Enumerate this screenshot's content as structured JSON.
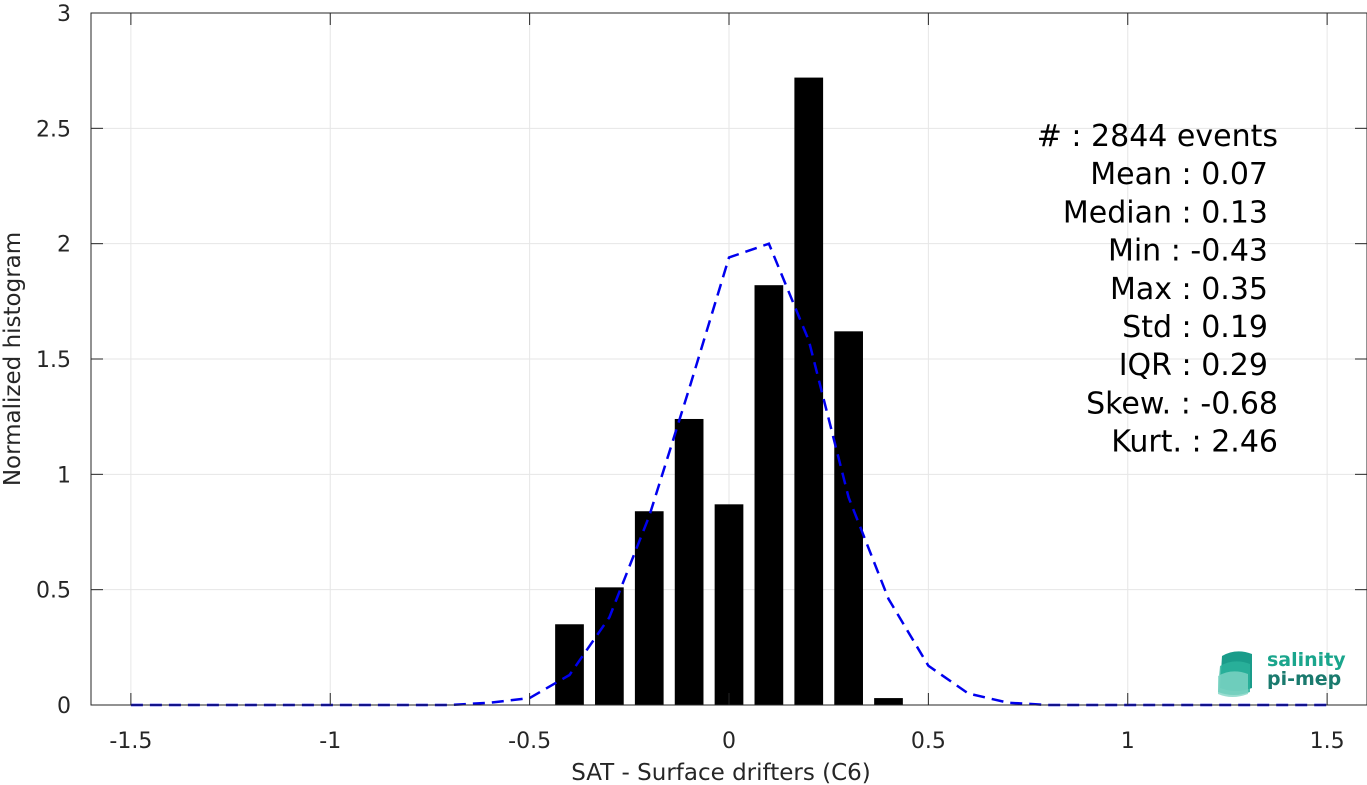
{
  "chart_data": {
    "type": "bar",
    "xlabel": "SAT - Surface drifters (C6)",
    "ylabel": "Normalized histogram",
    "xlim": [
      -1.6,
      1.6
    ],
    "ylim": [
      0,
      3
    ],
    "grid": true,
    "xticks": [
      -1.5,
      -1,
      -0.5,
      0,
      0.5,
      1,
      1.5
    ],
    "xtick_labels": [
      "-1.5",
      "-1",
      "-0.5",
      "0",
      "0.5",
      "1",
      "1.5"
    ],
    "yticks": [
      0,
      0.5,
      1,
      1.5,
      2,
      2.5,
      3
    ],
    "ytick_labels": [
      "0",
      "0.5",
      "1",
      "1.5",
      "2",
      "2.5",
      "3"
    ],
    "bars": {
      "x": [
        -0.4,
        -0.3,
        -0.2,
        -0.1,
        0.0,
        0.1,
        0.2,
        0.3,
        0.4
      ],
      "values": [
        0.35,
        0.51,
        0.84,
        1.24,
        0.87,
        1.82,
        2.72,
        1.62,
        0.03
      ],
      "color": "#000000"
    },
    "fit_curve": {
      "style": "dashed",
      "color": "#0000ee",
      "x": [
        -1.5,
        -1.4,
        -1.3,
        -1.2,
        -1.1,
        -1.0,
        -0.9,
        -0.8,
        -0.7,
        -0.6,
        -0.5,
        -0.4,
        -0.3,
        -0.2,
        -0.1,
        0.0,
        0.1,
        0.2,
        0.3,
        0.4,
        0.5,
        0.6,
        0.7,
        0.8,
        0.9,
        1.0,
        1.1,
        1.2,
        1.3,
        1.4,
        1.5
      ],
      "y": [
        0,
        0,
        0,
        0,
        0,
        0,
        0,
        0,
        0,
        0.01,
        0.03,
        0.13,
        0.38,
        0.82,
        1.37,
        1.94,
        2.0,
        1.58,
        0.9,
        0.46,
        0.17,
        0.05,
        0.01,
        0,
        0,
        0,
        0,
        0,
        0,
        0,
        0
      ]
    },
    "stats": [
      "#  : 2844 events",
      "Mean : 0.07",
      "Median : 0.13",
      "Min : -0.43",
      "Max : 0.35",
      "Std : 0.19",
      "IQR : 0.29",
      "Skew. : -0.68",
      "Kurt. : 2.46"
    ],
    "logo": {
      "line1": "salinity",
      "line2": "pi-mep",
      "color1": "#1aa58c",
      "color2": "#1a7a6e"
    }
  }
}
